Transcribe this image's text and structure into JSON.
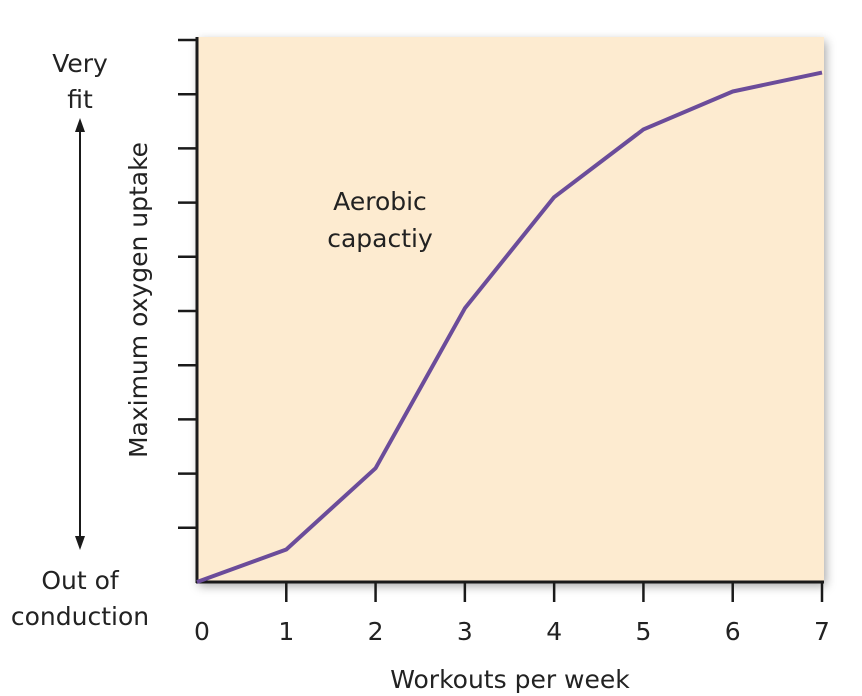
{
  "chart_data": {
    "type": "line",
    "title": "",
    "xlabel": "Workouts per week",
    "ylabel": "Maximum oxygen uptake",
    "x": [
      0,
      1,
      2,
      3,
      4,
      5,
      6,
      7
    ],
    "series": [
      {
        "name": "Aerobic capactiy",
        "values": [
          0,
          0.6,
          2.1,
          5.05,
          7.1,
          8.35,
          9.05,
          9.4
        ]
      }
    ],
    "xlim": [
      0,
      7
    ],
    "ylim": [
      0,
      10
    ],
    "xticks": [
      "0",
      "1",
      "2",
      "3",
      "4",
      "5",
      "6",
      "7"
    ],
    "yticks_count": 10,
    "annotation": {
      "line1": "Aerobic",
      "line2": "capactiy"
    },
    "y_top_label": {
      "line1": "Very",
      "line2": "fit"
    },
    "y_bottom_label": {
      "line1": "Out of",
      "line2": "conduction"
    },
    "grid": false,
    "colors": {
      "plot_bg": "#fdebd0",
      "line": "#6b4c9a",
      "axis": "#1a1a1a"
    }
  }
}
